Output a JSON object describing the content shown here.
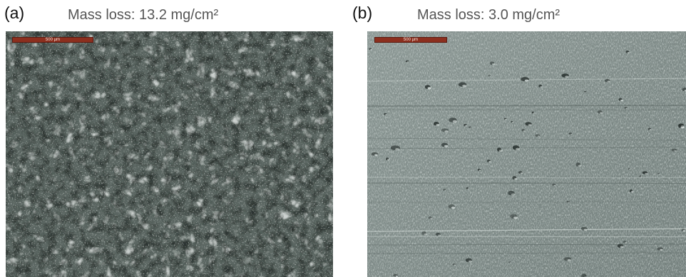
{
  "panels": [
    {
      "letter": "(a)",
      "caption": "Mass loss: 13.2 mg/cm²",
      "scalebar_label": "500 µm"
    },
    {
      "letter": "(b)",
      "caption": "Mass loss: 3.0 mg/cm²",
      "scalebar_label": "500 µm"
    }
  ],
  "colors": {
    "scalebar": "#8c2f1e",
    "panel_a_base": "#5f6a66",
    "panel_b_base": "#7d8986"
  }
}
